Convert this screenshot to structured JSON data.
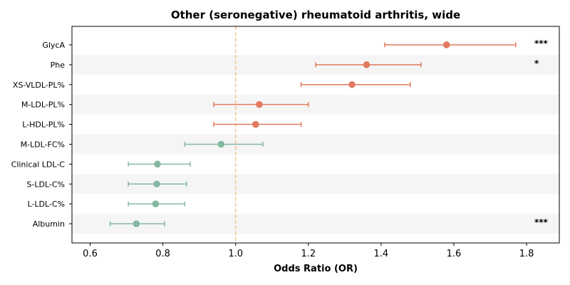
{
  "chart_data": {
    "type": "scatter",
    "title": "Other (seronegative) rheumatoid arthritis, wide",
    "xlabel": "Odds Ratio (OR)",
    "ylabel": "",
    "xlim": [
      0.55,
      1.89
    ],
    "xticks": [
      0.6,
      0.8,
      1.0,
      1.2,
      1.4,
      1.6,
      1.8
    ],
    "xtick_labels": [
      "0.6",
      "0.8",
      "1.0",
      "1.2",
      "1.4",
      "1.6",
      "1.8"
    ],
    "reference_line": 1.0,
    "grid": false,
    "alternating_row_shading": true,
    "colors": {
      "increased": "#e07b5f",
      "decreased": "#85b8a0",
      "reference": "#f2c38a",
      "band": "#f5f5f5"
    },
    "rows": [
      {
        "label": "GlycA",
        "or": 1.58,
        "ci_low": 1.41,
        "ci_high": 1.77,
        "significance": "***",
        "group": "increased"
      },
      {
        "label": "Phe",
        "or": 1.36,
        "ci_low": 1.22,
        "ci_high": 1.51,
        "significance": "*",
        "group": "increased"
      },
      {
        "label": "XS-VLDL-PL%",
        "or": 1.32,
        "ci_low": 1.18,
        "ci_high": 1.48,
        "significance": "",
        "group": "increased"
      },
      {
        "label": "M-LDL-PL%",
        "or": 1.065,
        "ci_low": 0.94,
        "ci_high": 1.2,
        "significance": "",
        "group": "increased"
      },
      {
        "label": "L-HDL-PL%",
        "or": 1.055,
        "ci_low": 0.94,
        "ci_high": 1.18,
        "significance": "",
        "group": "increased"
      },
      {
        "label": "M-LDL-FC%",
        "or": 0.96,
        "ci_low": 0.86,
        "ci_high": 1.075,
        "significance": "",
        "group": "decreased"
      },
      {
        "label": "Clinical LDL-C",
        "or": 0.785,
        "ci_low": 0.705,
        "ci_high": 0.875,
        "significance": "",
        "group": "decreased"
      },
      {
        "label": "S-LDL-C%",
        "or": 0.783,
        "ci_low": 0.705,
        "ci_high": 0.865,
        "significance": "",
        "group": "decreased"
      },
      {
        "label": "L-LDL-C%",
        "or": 0.78,
        "ci_low": 0.705,
        "ci_high": 0.86,
        "significance": "",
        "group": "decreased"
      },
      {
        "label": "Albumin",
        "or": 0.727,
        "ci_low": 0.655,
        "ci_high": 0.805,
        "significance": "***",
        "group": "decreased"
      }
    ]
  }
}
